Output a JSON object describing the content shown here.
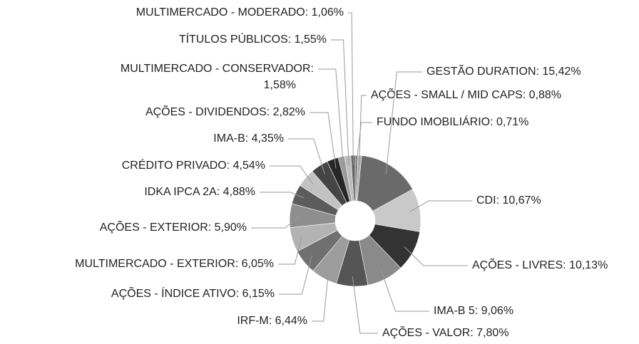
{
  "chart_data": {
    "type": "donut",
    "values": [
      0.71,
      0.88,
      15.42,
      10.67,
      10.13,
      9.06,
      7.8,
      6.44,
      6.15,
      6.05,
      5.9,
      4.88,
      4.54,
      4.35,
      2.82,
      1.58,
      1.55,
      1.06
    ],
    "value_labels": [
      "FUNDO IMOBILIÁRIO: 0,71%",
      "AÇÕES - SMALL / MID CAPS: 0,88%",
      "GESTÃO DURATION: 15,42%",
      "CDI: 10,67%",
      "AÇÕES - LIVRES: 10,13%",
      "IMA-B 5: 9,06%",
      "AÇÕES - VALOR: 7,80%",
      "IRF-M: 6,44%",
      "AÇÕES - ÍNDICE ATIVO: 6,15%",
      "MULTIMERCADO - EXTERIOR: 6,05%",
      "AÇÕES - EXTERIOR: 5,90%",
      "IDKA IPCA 2A: 4,88%",
      "CRÉDITO PRIVADO: 4,54%",
      "IMA-B: 4,35%",
      "AÇÕES - DIVIDENDOS: 2,82%",
      "MULTIMERCADO - CONSERVADOR:\n1,58%",
      "TÍTULOS PÚBLICOS: 1,55%",
      "MULTIMERCADO - MODERADO: 1,06%"
    ],
    "colors": [
      "#7a7a7a",
      "#adadad",
      "#6a6a6a",
      "#c9c9c9",
      "#333333",
      "#8a8a8a",
      "#555555",
      "#9c9c9c",
      "#707070",
      "#b3b3b3",
      "#8e8e8e",
      "#5c5c5c",
      "#c2c2c2",
      "#454545",
      "#262626",
      "#9a9a9a",
      "#bcbcbc",
      "#666666"
    ]
  }
}
